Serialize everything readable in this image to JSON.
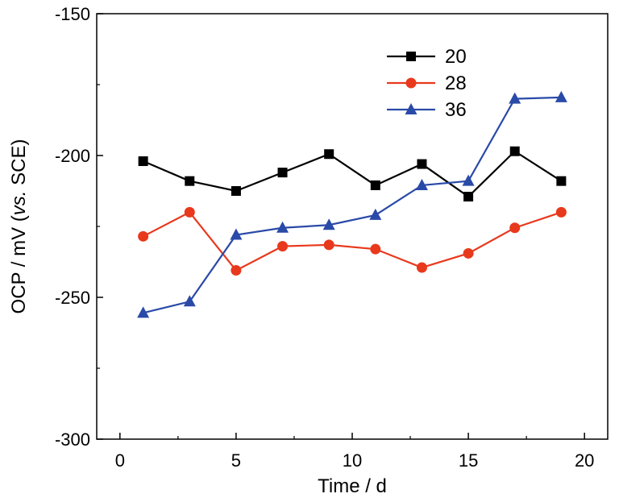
{
  "chart_data": {
    "type": "line",
    "xlabel": "Time / d",
    "ylabel_parts": [
      "OCP / mV (",
      "vs.",
      " SCE)"
    ],
    "xlim": [
      -1,
      21
    ],
    "ylim": [
      -300,
      -150
    ],
    "xticks": [
      0,
      5,
      10,
      15,
      20
    ],
    "yticks": [
      -300,
      -250,
      -200,
      -150
    ],
    "x": [
      1,
      3,
      5,
      7,
      9,
      11,
      13,
      15,
      17,
      19
    ],
    "series": [
      {
        "name": "20",
        "color": "#000000",
        "marker": "square",
        "values": [
          -202,
          -209,
          -212.5,
          -206,
          -199.5,
          -210.5,
          -203,
          -214.5,
          -198.5,
          -209
        ]
      },
      {
        "name": "28",
        "color": "#e8391d",
        "marker": "circle",
        "values": [
          -228.5,
          -220,
          -240.5,
          -232,
          -231.5,
          -233,
          -239.5,
          -234.5,
          -225.5,
          -220
        ]
      },
      {
        "name": "36",
        "color": "#2a4aa8",
        "marker": "triangle",
        "values": [
          -255.5,
          -251.5,
          -228,
          -225.5,
          -224.5,
          -221,
          -210.5,
          -209,
          -180,
          -179.5
        ]
      }
    ],
    "legend_position": "top-right",
    "grid": false
  }
}
